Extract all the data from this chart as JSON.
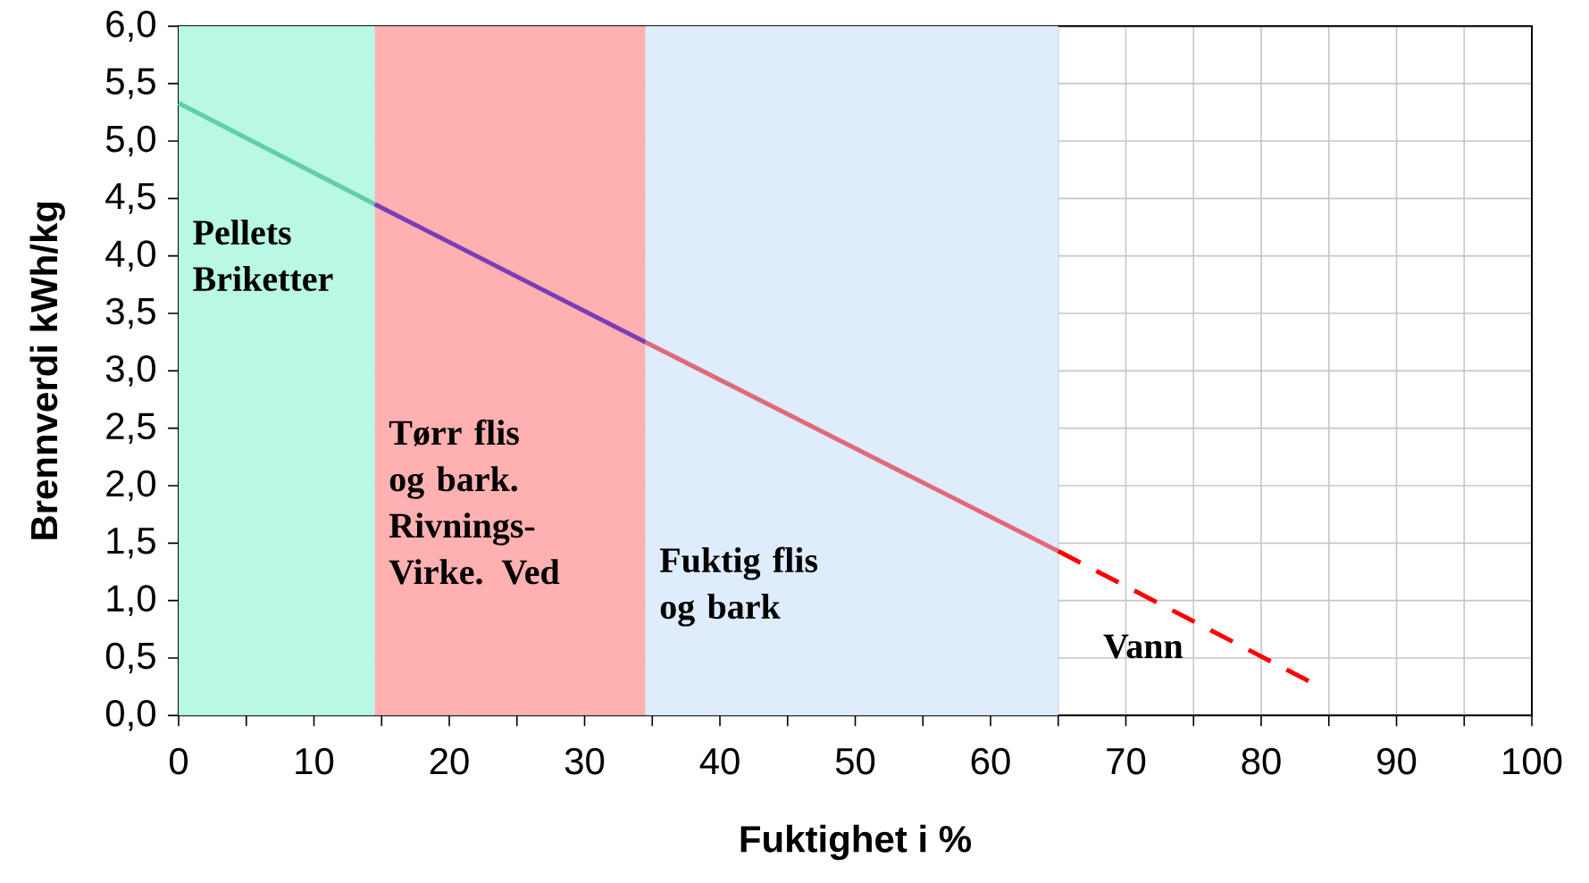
{
  "chart_data": {
    "type": "line",
    "xlabel": "Fuktighet i %",
    "ylabel": "Brennverdi kWh/kg",
    "series": [
      {
        "color": "#5fcfa8",
        "x": [
          0,
          14.5
        ],
        "values": [
          5.33,
          4.45
        ]
      },
      {
        "color": "#7a3db8",
        "x": [
          14.5,
          34.5
        ],
        "values": [
          4.45,
          3.25
        ]
      },
      {
        "color": "#e06a7a",
        "x": [
          34.5,
          65
        ],
        "values": [
          3.25,
          1.43
        ]
      },
      {
        "color": "#ff0000",
        "line_style": "dashed",
        "x": [
          65,
          83.5
        ],
        "values": [
          1.43,
          0.3
        ]
      }
    ],
    "bands": [
      {
        "axis": "x",
        "from": 0,
        "to": 14.5,
        "label": "Pellets Briketter",
        "color": "#b8f8e4"
      },
      {
        "axis": "x",
        "from": 14.5,
        "to": 34.5,
        "label": "Tørr flis og bark. Rivnings-Virke. Ved",
        "color": "#ffb0b0"
      },
      {
        "axis": "x",
        "from": 34.5,
        "to": 65,
        "label": "Fuktig flis og bark",
        "color": "#deecfc"
      }
    ],
    "annotations": [
      "Vann"
    ],
    "xlim": [
      0,
      100
    ],
    "xticks": [
      0,
      {
        "value": 5,
        "label": null
      },
      10,
      {
        "value": 15,
        "label": null
      },
      20,
      {
        "value": 25,
        "label": null
      },
      30,
      {
        "value": 35,
        "label": null
      },
      40,
      {
        "value": 45,
        "label": null
      },
      50,
      {
        "value": 55,
        "label": null
      },
      60,
      {
        "value": 65,
        "label": null
      },
      70,
      {
        "value": 75,
        "label": null
      },
      80,
      {
        "value": 85,
        "label": null
      },
      90,
      {
        "value": 95,
        "label": null
      },
      100
    ],
    "ylim": [
      0,
      6
    ],
    "yticks": [
      {
        "value": 0,
        "label": "0,0"
      },
      {
        "value": 0.5,
        "label": "0,5"
      },
      {
        "value": 1,
        "label": "1,0"
      },
      {
        "value": 1.5,
        "label": "1,5"
      },
      {
        "value": 2,
        "label": "2,0"
      },
      {
        "value": 2.5,
        "label": "2,5"
      },
      {
        "value": 3,
        "label": "3,0"
      },
      {
        "value": 3.5,
        "label": "3,5"
      },
      {
        "value": 4,
        "label": "4,0"
      },
      {
        "value": 4.5,
        "label": "4,5"
      },
      {
        "value": 5,
        "label": "5,0"
      },
      {
        "value": 5.5,
        "label": "5,5"
      },
      {
        "value": 6,
        "label": "6,0"
      }
    ],
    "grid": true,
    "marker": "none"
  }
}
